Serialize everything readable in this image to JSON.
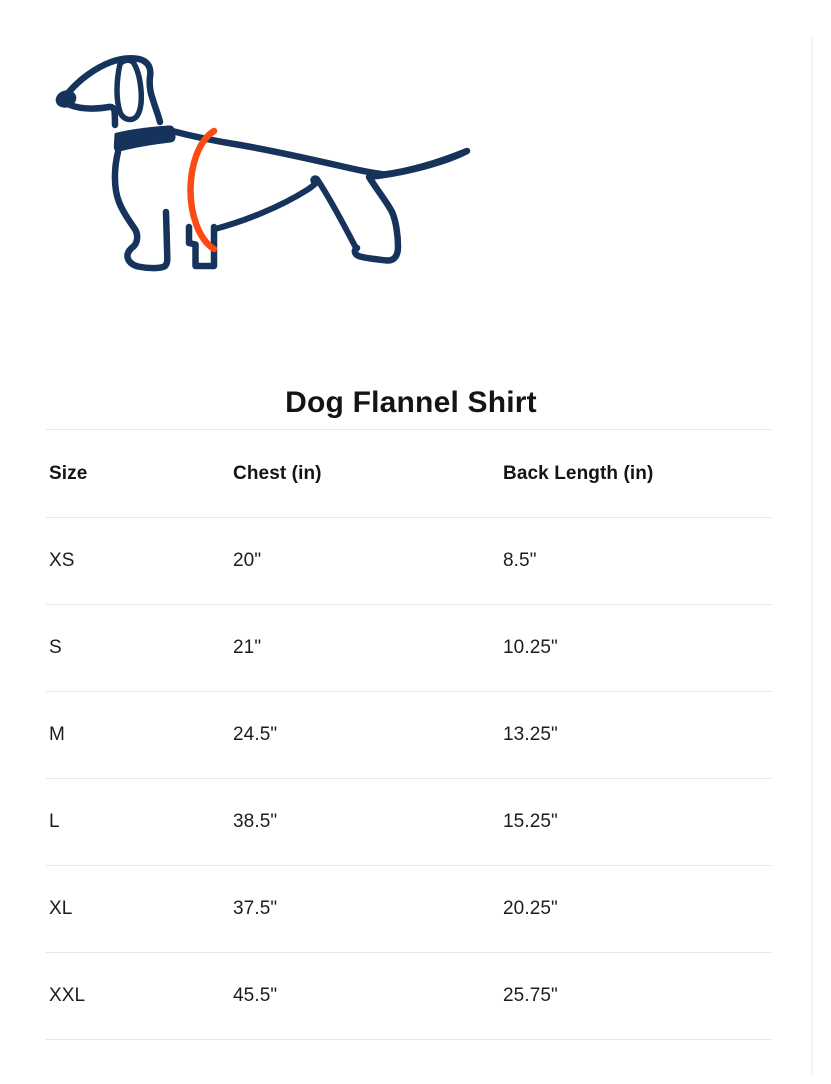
{
  "title": "Dog Flannel Shirt",
  "illustration": {
    "name": "dachshund-chest-measurement",
    "alt": "Outline drawing of a dachshund with an orange line marking where to measure the chest",
    "outline_color": "#16335C",
    "highlight_color": "#FB4A14"
  },
  "size_chart": {
    "columns": [
      "Size",
      "Chest (in)",
      "Back Length (in)"
    ],
    "column_keys": [
      "size",
      "chest-in",
      "back-length-in"
    ],
    "rows": [
      [
        "XS",
        "20\"",
        "8.5\""
      ],
      [
        "S",
        "21\"",
        "10.25\""
      ],
      [
        "M",
        "24.5\"",
        "13.25\""
      ],
      [
        "L",
        "38.5\"",
        "15.25\""
      ],
      [
        "XL",
        "37.5\"",
        "20.25\""
      ],
      [
        "XXL",
        "45.5\"",
        "25.75\""
      ]
    ],
    "divider_color": "#e7e7e7"
  }
}
